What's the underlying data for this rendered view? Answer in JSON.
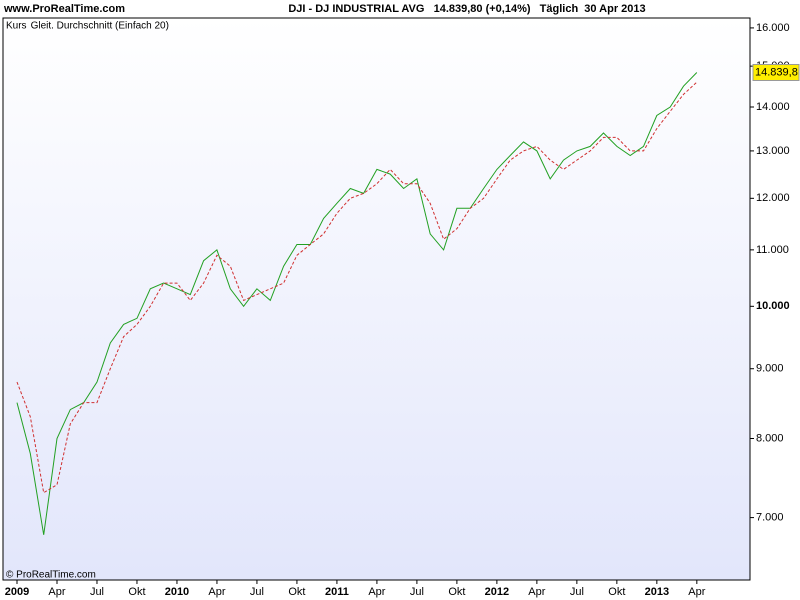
{
  "chart_data": {
    "type": "line",
    "site": "www.ProRealTime.com",
    "title": "DJI - DJ INDUSTRIAL AVG   14.839,80 (+0,14%)   Täglich  30 Apr 2013",
    "footer": "© ProRealTime.com",
    "last_label": "14.839,8",
    "log_scale": true,
    "categories": [
      "2009",
      null,
      null,
      "Apr",
      null,
      null,
      "Jul",
      null,
      null,
      "Okt",
      null,
      null,
      "2010",
      null,
      null,
      "Apr",
      null,
      null,
      "Jul",
      null,
      null,
      "Okt",
      null,
      null,
      "2011",
      null,
      null,
      "Apr",
      null,
      null,
      "Jul",
      null,
      null,
      "Okt",
      null,
      null,
      "2012",
      null,
      null,
      "Apr",
      null,
      null,
      "Jul",
      null,
      null,
      "Okt",
      null,
      null,
      "2013",
      null,
      null,
      "Apr"
    ],
    "series": [
      {
        "name": "Kurs",
        "color": "#22a022",
        "dash": false,
        "values": [
          8500,
          7800,
          6800,
          8000,
          8400,
          8500,
          8800,
          9400,
          9700,
          9800,
          10300,
          10400,
          10300,
          10200,
          10800,
          11000,
          10300,
          10000,
          10300,
          10100,
          10700,
          11100,
          11100,
          11600,
          11900,
          12200,
          12100,
          12600,
          12500,
          12200,
          12400,
          11300,
          11000,
          11800,
          11800,
          12200,
          12600,
          12900,
          13200,
          13000,
          12400,
          12800,
          13000,
          13100,
          13400,
          13100,
          12900,
          13100,
          13800,
          14000,
          14500,
          14840
        ]
      },
      {
        "name": "Gleit. Durchschnitt (Einfach 20)",
        "color": "#d03030",
        "dash": true,
        "values": [
          8800,
          8300,
          7300,
          7400,
          8200,
          8500,
          8500,
          9000,
          9500,
          9700,
          10000,
          10400,
          10400,
          10100,
          10400,
          10900,
          10700,
          10100,
          10200,
          10300,
          10400,
          10900,
          11100,
          11300,
          11700,
          12000,
          12100,
          12300,
          12600,
          12300,
          12300,
          11900,
          11200,
          11400,
          11800,
          12000,
          12400,
          12800,
          13000,
          13100,
          12800,
          12600,
          12800,
          13000,
          13300,
          13300,
          13000,
          13000,
          13500,
          13900,
          14300,
          14600
        ]
      }
    ],
    "ylim": [
      6300,
      16270
    ],
    "yticks": [
      {
        "value": 7000,
        "label": "7.000"
      },
      {
        "value": 8000,
        "label": "8.000"
      },
      {
        "value": 9000,
        "label": "9.000"
      },
      {
        "value": 10000,
        "label": "10.000"
      },
      {
        "value": 11000,
        "label": "11.000"
      },
      {
        "value": 12000,
        "label": "12.000"
      },
      {
        "value": 13000,
        "label": "13.000"
      },
      {
        "value": 14000,
        "label": "14.000"
      },
      {
        "value": 15000,
        "label": "15.000"
      },
      {
        "value": 16000,
        "label": "16.000"
      }
    ]
  }
}
